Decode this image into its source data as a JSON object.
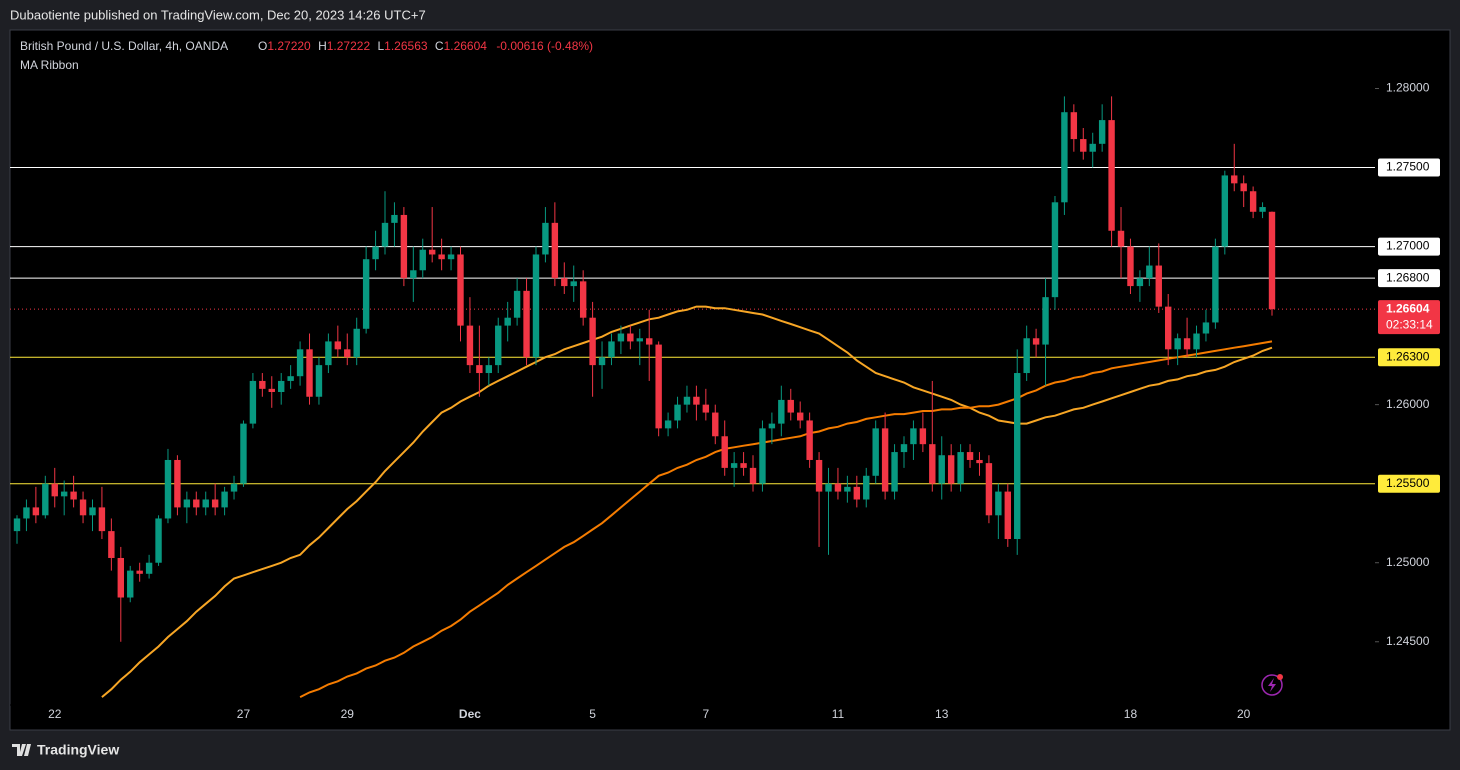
{
  "header": {
    "published": "Dubaotiente published on TradingView.com, Dec 20, 2023 14:26 UTC+7"
  },
  "footer": {
    "brand": "TradingView"
  },
  "chart_data": {
    "type": "candlestick",
    "title": "British Pound / U.S. Dollar, 4h, OANDA",
    "legend": {
      "o_label": "O",
      "o": "1.27220",
      "h_label": "H",
      "h": "1.27222",
      "l_label": "L",
      "l": "1.26563",
      "c_label": "C",
      "c": "1.26604",
      "change": "-0.00616 (-0.48%)"
    },
    "indicator": "MA Ribbon",
    "up_color": "#089981",
    "down_color": "#f23645",
    "categories": [
      null,
      null,
      null,
      null,
      "22",
      null,
      null,
      null,
      null,
      null,
      null,
      null,
      null,
      null,
      null,
      null,
      null,
      null,
      null,
      null,
      null,
      null,
      null,
      null,
      "27",
      null,
      null,
      null,
      null,
      null,
      null,
      null,
      null,
      null,
      null,
      "29",
      null,
      null,
      null,
      null,
      null,
      null,
      null,
      null,
      null,
      null,
      null,
      null,
      "Dec",
      null,
      null,
      null,
      null,
      null,
      null,
      null,
      null,
      null,
      null,
      null,
      null,
      "5",
      null,
      null,
      null,
      null,
      null,
      null,
      null,
      null,
      null,
      null,
      null,
      "7",
      null,
      null,
      null,
      null,
      null,
      null,
      null,
      null,
      null,
      null,
      null,
      null,
      null,
      "11",
      null,
      null,
      null,
      null,
      null,
      null,
      null,
      null,
      null,
      null,
      "13",
      null,
      null,
      null,
      null,
      null,
      null,
      null,
      null,
      null,
      null,
      null,
      null,
      null,
      null,
      null,
      null,
      null,
      null,
      null,
      "18",
      null,
      null,
      null,
      null,
      null,
      null,
      null,
      null,
      null,
      null,
      null,
      "20",
      null,
      null,
      null
    ],
    "candles": [
      [
        1.252,
        1.253,
        1.2512,
        1.2528
      ],
      [
        1.2528,
        1.254,
        1.252,
        1.2535
      ],
      [
        1.2535,
        1.2548,
        1.2525,
        1.253
      ],
      [
        1.253,
        1.2555,
        1.2528,
        1.255
      ],
      [
        1.255,
        1.256,
        1.2535,
        1.2542
      ],
      [
        1.2542,
        1.2552,
        1.253,
        1.2545
      ],
      [
        1.2545,
        1.2555,
        1.2535,
        1.254
      ],
      [
        1.254,
        1.2545,
        1.2525,
        1.253
      ],
      [
        1.253,
        1.254,
        1.252,
        1.2535
      ],
      [
        1.2535,
        1.2548,
        1.2515,
        1.252
      ],
      [
        1.252,
        1.2528,
        1.2495,
        1.2503
      ],
      [
        1.2503,
        1.251,
        1.245,
        1.2478
      ],
      [
        1.2478,
        1.2498,
        1.2475,
        1.2495
      ],
      [
        1.2495,
        1.25,
        1.2488,
        1.2493
      ],
      [
        1.2493,
        1.2505,
        1.249,
        1.25
      ],
      [
        1.25,
        1.253,
        1.2498,
        1.2528
      ],
      [
        1.2528,
        1.2572,
        1.2525,
        1.2565
      ],
      [
        1.2565,
        1.2568,
        1.253,
        1.2535
      ],
      [
        1.2535,
        1.2545,
        1.2525,
        1.254
      ],
      [
        1.254,
        1.2545,
        1.253,
        1.2535
      ],
      [
        1.2535,
        1.2545,
        1.253,
        1.254
      ],
      [
        1.254,
        1.255,
        1.253,
        1.2535
      ],
      [
        1.2535,
        1.2548,
        1.253,
        1.2545
      ],
      [
        1.2545,
        1.2555,
        1.254,
        1.255
      ],
      [
        1.255,
        1.259,
        1.2548,
        1.2588
      ],
      [
        1.2588,
        1.262,
        1.2585,
        1.2615
      ],
      [
        1.2615,
        1.262,
        1.2605,
        1.261
      ],
      [
        1.261,
        1.2618,
        1.2598,
        1.2608
      ],
      [
        1.2608,
        1.262,
        1.26,
        1.2615
      ],
      [
        1.2615,
        1.2625,
        1.261,
        1.2618
      ],
      [
        1.2618,
        1.264,
        1.2612,
        1.2635
      ],
      [
        1.2635,
        1.2645,
        1.26,
        1.2605
      ],
      [
        1.2605,
        1.263,
        1.26,
        1.2625
      ],
      [
        1.2625,
        1.2645,
        1.262,
        1.264
      ],
      [
        1.264,
        1.265,
        1.263,
        1.2635
      ],
      [
        1.2635,
        1.2645,
        1.2625,
        1.263
      ],
      [
        1.263,
        1.2655,
        1.2625,
        1.2648
      ],
      [
        1.2648,
        1.27,
        1.2645,
        1.2692
      ],
      [
        1.2692,
        1.271,
        1.2685,
        1.27
      ],
      [
        1.27,
        1.2735,
        1.2695,
        1.2715
      ],
      [
        1.2715,
        1.2728,
        1.27,
        1.272
      ],
      [
        1.272,
        1.2725,
        1.2675,
        1.268
      ],
      [
        1.268,
        1.27,
        1.2665,
        1.2685
      ],
      [
        1.2685,
        1.2705,
        1.268,
        1.2698
      ],
      [
        1.2698,
        1.2725,
        1.269,
        1.2695
      ],
      [
        1.2695,
        1.2705,
        1.2685,
        1.2692
      ],
      [
        1.2692,
        1.27,
        1.2685,
        1.2695
      ],
      [
        1.2695,
        1.27,
        1.264,
        1.265
      ],
      [
        1.265,
        1.2668,
        1.262,
        1.2625
      ],
      [
        1.2625,
        1.265,
        1.2605,
        1.262
      ],
      [
        1.262,
        1.263,
        1.2612,
        1.2625
      ],
      [
        1.2625,
        1.2655,
        1.262,
        1.265
      ],
      [
        1.265,
        1.2665,
        1.264,
        1.2655
      ],
      [
        1.2655,
        1.268,
        1.265,
        1.2672
      ],
      [
        1.2672,
        1.268,
        1.2625,
        1.263
      ],
      [
        1.263,
        1.27,
        1.2625,
        1.2695
      ],
      [
        1.2695,
        1.2725,
        1.269,
        1.2715
      ],
      [
        1.2715,
        1.2728,
        1.2675,
        1.268
      ],
      [
        1.268,
        1.269,
        1.267,
        1.2675
      ],
      [
        1.2675,
        1.2688,
        1.2665,
        1.2678
      ],
      [
        1.2678,
        1.2685,
        1.265,
        1.2655
      ],
      [
        1.2655,
        1.2665,
        1.2605,
        1.2625
      ],
      [
        1.2625,
        1.264,
        1.261,
        1.263
      ],
      [
        1.263,
        1.2645,
        1.2625,
        1.264
      ],
      [
        1.264,
        1.265,
        1.2632,
        1.2645
      ],
      [
        1.2645,
        1.265,
        1.2635,
        1.264
      ],
      [
        1.264,
        1.2648,
        1.2625,
        1.2642
      ],
      [
        1.2642,
        1.266,
        1.2615,
        1.2638
      ],
      [
        1.2638,
        1.264,
        1.258,
        1.2585
      ],
      [
        1.2585,
        1.2595,
        1.258,
        1.259
      ],
      [
        1.259,
        1.2605,
        1.2585,
        1.26
      ],
      [
        1.26,
        1.2612,
        1.2595,
        1.2605
      ],
      [
        1.2605,
        1.2612,
        1.259,
        1.26
      ],
      [
        1.26,
        1.261,
        1.259,
        1.2595
      ],
      [
        1.2595,
        1.26,
        1.2575,
        1.258
      ],
      [
        1.258,
        1.259,
        1.2555,
        1.256
      ],
      [
        1.256,
        1.257,
        1.2548,
        1.2563
      ],
      [
        1.2563,
        1.257,
        1.2555,
        1.256
      ],
      [
        1.256,
        1.2568,
        1.2545,
        1.255
      ],
      [
        1.255,
        1.259,
        1.2545,
        1.2585
      ],
      [
        1.2585,
        1.2595,
        1.2575,
        1.2588
      ],
      [
        1.2588,
        1.2612,
        1.258,
        1.2603
      ],
      [
        1.2603,
        1.261,
        1.259,
        1.2595
      ],
      [
        1.2595,
        1.2602,
        1.2585,
        1.259
      ],
      [
        1.259,
        1.2595,
        1.256,
        1.2565
      ],
      [
        1.2565,
        1.257,
        1.251,
        1.2545
      ],
      [
        1.2545,
        1.256,
        1.2505,
        1.255
      ],
      [
        1.255,
        1.256,
        1.254,
        1.2545
      ],
      [
        1.2545,
        1.2555,
        1.2538,
        1.2548
      ],
      [
        1.2548,
        1.2555,
        1.2535,
        1.254
      ],
      [
        1.254,
        1.256,
        1.2535,
        1.2555
      ],
      [
        1.2555,
        1.259,
        1.255,
        1.2585
      ],
      [
        1.2585,
        1.2595,
        1.254,
        1.2545
      ],
      [
        1.2545,
        1.2575,
        1.254,
        1.257
      ],
      [
        1.257,
        1.258,
        1.256,
        1.2575
      ],
      [
        1.2575,
        1.259,
        1.2565,
        1.2585
      ],
      [
        1.2585,
        1.2595,
        1.257,
        1.2575
      ],
      [
        1.2575,
        1.2615,
        1.2545,
        1.255
      ],
      [
        1.255,
        1.258,
        1.254,
        1.2568
      ],
      [
        1.2568,
        1.2575,
        1.2545,
        1.255
      ],
      [
        1.255,
        1.2575,
        1.2545,
        1.257
      ],
      [
        1.257,
        1.2575,
        1.256,
        1.2565
      ],
      [
        1.2565,
        1.257,
        1.2555,
        1.2563
      ],
      [
        1.2563,
        1.2568,
        1.2525,
        1.253
      ],
      [
        1.253,
        1.255,
        1.2515,
        1.2545
      ],
      [
        1.2545,
        1.255,
        1.251,
        1.2515
      ],
      [
        1.2515,
        1.2635,
        1.2505,
        1.262
      ],
      [
        1.262,
        1.265,
        1.2615,
        1.2642
      ],
      [
        1.2642,
        1.2648,
        1.263,
        1.2638
      ],
      [
        1.2638,
        1.268,
        1.2612,
        1.2668
      ],
      [
        1.2668,
        1.2732,
        1.266,
        1.2728
      ],
      [
        1.2728,
        1.2795,
        1.272,
        1.2785
      ],
      [
        1.2785,
        1.279,
        1.276,
        1.2768
      ],
      [
        1.2768,
        1.2775,
        1.2755,
        1.276
      ],
      [
        1.276,
        1.2772,
        1.275,
        1.2765
      ],
      [
        1.2765,
        1.279,
        1.276,
        1.278
      ],
      [
        1.278,
        1.2795,
        1.27,
        1.271
      ],
      [
        1.271,
        1.2725,
        1.268,
        1.27
      ],
      [
        1.27,
        1.2705,
        1.267,
        1.2675
      ],
      [
        1.2675,
        1.2685,
        1.2665,
        1.268
      ],
      [
        1.268,
        1.27,
        1.2675,
        1.2688
      ],
      [
        1.2688,
        1.2702,
        1.2658,
        1.2662
      ],
      [
        1.2662,
        1.267,
        1.2625,
        1.2635
      ],
      [
        1.2635,
        1.2645,
        1.2625,
        1.2642
      ],
      [
        1.2642,
        1.2655,
        1.263,
        1.2635
      ],
      [
        1.2635,
        1.265,
        1.263,
        1.2645
      ],
      [
        1.2645,
        1.266,
        1.264,
        1.2652
      ],
      [
        1.2652,
        1.2705,
        1.2648,
        1.27
      ],
      [
        1.27,
        1.2748,
        1.2695,
        1.2745
      ],
      [
        1.2745,
        1.2765,
        1.2735,
        1.274
      ],
      [
        1.274,
        1.2745,
        1.2725,
        1.2735
      ],
      [
        1.2735,
        1.2738,
        1.2718,
        1.2722
      ],
      [
        1.2722,
        1.2728,
        1.2718,
        1.2725
      ],
      [
        1.2722,
        1.27222,
        1.26563,
        1.26604
      ]
    ],
    "series": [
      {
        "color": "#f7a625",
        "values": [
          null,
          null,
          null,
          null,
          null,
          null,
          null,
          null,
          null,
          1.2415,
          1.242,
          1.2426,
          1.2431,
          1.2437,
          1.2442,
          1.2447,
          1.2453,
          1.2458,
          1.2463,
          1.2469,
          1.2474,
          1.2479,
          1.2485,
          1.249,
          1.2492,
          1.2494,
          1.2496,
          1.2498,
          1.25,
          1.2503,
          1.2505,
          1.2511,
          1.2516,
          1.2522,
          1.2528,
          1.2534,
          1.2539,
          1.2545,
          1.2551,
          1.2558,
          1.2564,
          1.257,
          1.2576,
          1.2583,
          1.2589,
          1.2595,
          1.2598,
          1.2602,
          1.2605,
          1.2608,
          1.2612,
          1.2615,
          1.2618,
          1.2621,
          1.2624,
          1.2627,
          1.263,
          1.2632,
          1.2635,
          1.2637,
          1.2639,
          1.2641,
          1.2643,
          1.2646,
          1.2648,
          1.265,
          1.2652,
          1.2654,
          1.2655,
          1.2657,
          1.2659,
          1.266,
          1.2662,
          1.2662,
          1.2661,
          1.2661,
          1.266,
          1.2659,
          1.2658,
          1.2657,
          1.2655,
          1.2653,
          1.2651,
          1.2649,
          1.2647,
          1.2645,
          1.2641,
          1.2637,
          1.2633,
          1.2628,
          1.2624,
          1.262,
          1.2618,
          1.2616,
          1.2614,
          1.2611,
          1.2609,
          1.2607,
          1.2605,
          1.2603,
          1.26,
          1.2598,
          1.2595,
          1.2593,
          1.259,
          1.2589,
          1.2588,
          1.2588,
          1.259,
          1.2592,
          1.2593,
          1.2595,
          1.2597,
          1.2598,
          1.26,
          1.2602,
          1.2604,
          1.2606,
          1.2608,
          1.261,
          1.2612,
          1.2613,
          1.2615,
          1.2616,
          1.2618,
          1.2619,
          1.2621,
          1.2622,
          1.2624,
          1.2627,
          1.2629,
          1.2631,
          1.2634,
          1.2636
        ]
      },
      {
        "color": "#f57c00",
        "values": [
          null,
          null,
          null,
          null,
          null,
          null,
          null,
          null,
          null,
          null,
          null,
          null,
          null,
          null,
          null,
          null,
          null,
          null,
          null,
          null,
          null,
          null,
          null,
          null,
          null,
          null,
          null,
          null,
          null,
          null,
          1.2415,
          1.2418,
          1.242,
          1.2423,
          1.2425,
          1.2428,
          1.243,
          1.2433,
          1.2435,
          1.2438,
          1.244,
          1.2443,
          1.2447,
          1.245,
          1.2453,
          1.2457,
          1.246,
          1.2464,
          1.2469,
          1.2473,
          1.2477,
          1.2481,
          1.2486,
          1.249,
          1.2494,
          1.2498,
          1.2502,
          1.2506,
          1.251,
          1.2513,
          1.2517,
          1.2521,
          1.2525,
          1.253,
          1.2535,
          1.254,
          1.2545,
          1.255,
          1.2555,
          1.2557,
          1.256,
          1.2562,
          1.2565,
          1.2567,
          1.257,
          1.2572,
          1.2573,
          1.2574,
          1.2575,
          1.2576,
          1.2577,
          1.2578,
          1.2579,
          1.258,
          1.2582,
          1.2583,
          1.2585,
          1.2586,
          1.2588,
          1.2589,
          1.2591,
          1.2592,
          1.2593,
          1.2594,
          1.2594,
          1.2595,
          1.2596,
          1.2596,
          1.2597,
          1.2597,
          1.2598,
          1.2598,
          1.2599,
          1.2599,
          1.26,
          1.2602,
          1.2604,
          1.2607,
          1.2609,
          1.2612,
          1.2614,
          1.2615,
          1.2617,
          1.2618,
          1.262,
          1.2621,
          1.2623,
          1.2624,
          1.2625,
          1.2626,
          1.2627,
          1.2628,
          1.2629,
          1.263,
          1.2631,
          1.2632,
          1.2633,
          1.2634,
          1.2635,
          1.2636,
          1.2637,
          1.2638,
          1.2639,
          1.264
        ]
      }
    ],
    "levels": [
      {
        "value": 1.275,
        "label": "1.27500",
        "color": "#ffffff"
      },
      {
        "value": 1.27,
        "label": "1.27000",
        "color": "#ffffff"
      },
      {
        "value": 1.268,
        "label": "1.26800",
        "color": "#ffffff"
      },
      {
        "value": 1.263,
        "label": "1.26300",
        "color": "#ffeb3b"
      },
      {
        "value": 1.255,
        "label": "1.25500",
        "color": "#ffeb3b"
      }
    ],
    "last_price": {
      "value": 1.26604,
      "label": "1.26604",
      "countdown": "02:33:14"
    },
    "ylim": [
      1.241,
      1.2837
    ],
    "yticks": [
      {
        "value": 1.28,
        "label": "1.28000"
      },
      {
        "value": 1.26,
        "label": "1.26000"
      },
      {
        "value": 1.25,
        "label": "1.25000"
      },
      {
        "value": 1.245,
        "label": "1.24500"
      }
    ]
  }
}
